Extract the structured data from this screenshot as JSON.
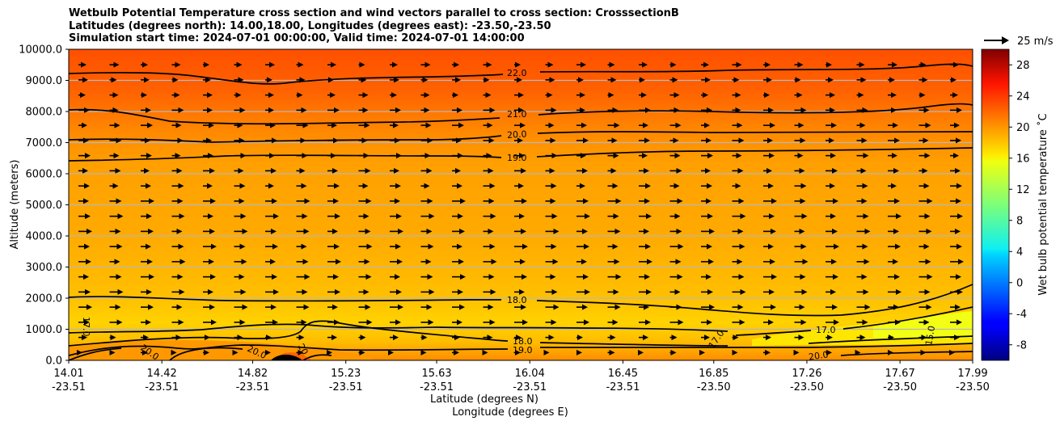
{
  "title_lines": [
    "Wetbulb Potential Temperature cross section and wind vectors parallel to cross section: CrosssectionB",
    "Latitudes (degrees north): 14.00,18.00, Longitudes (degrees east): -23.50,-23.50",
    "Simulation start time: 2024-07-01 00:00:00, Valid time: 2024-07-01 14:00:00"
  ],
  "quiver_key": "25 m/s",
  "chart_data": {
    "type": "filled-contour cross section with wind vectors",
    "xlabel_lat": "Latitude (degrees N)",
    "xlabel_lon": "Longitude (degrees E)",
    "ylabel": "Altitude (meters)",
    "ylim": [
      0,
      10000
    ],
    "xlim": [
      14.01,
      17.99
    ],
    "yticks": [
      0,
      1000,
      2000,
      3000,
      4000,
      5000,
      6000,
      7000,
      8000,
      9000,
      10000
    ],
    "ytick_labels": [
      "0.0",
      "1000.0",
      "2000.0",
      "3000.0",
      "4000.0",
      "5000.0",
      "6000.0",
      "7000.0",
      "8000.0",
      "9000.0",
      "10000.0"
    ],
    "xticks": [
      {
        "lat": "14.01",
        "lon": "-23.51"
      },
      {
        "lat": "14.42",
        "lon": "-23.51"
      },
      {
        "lat": "14.82",
        "lon": "-23.51"
      },
      {
        "lat": "15.23",
        "lon": "-23.51"
      },
      {
        "lat": "15.63",
        "lon": "-23.51"
      },
      {
        "lat": "16.04",
        "lon": "-23.51"
      },
      {
        "lat": "16.45",
        "lon": "-23.51"
      },
      {
        "lat": "16.85",
        "lon": "-23.50"
      },
      {
        "lat": "17.26",
        "lon": "-23.50"
      },
      {
        "lat": "17.67",
        "lon": "-23.50"
      },
      {
        "lat": "17.99",
        "lon": "-23.50"
      }
    ],
    "colorbar": {
      "label": "Wet bulb potential temperature ˚C",
      "range": [
        -10,
        30
      ],
      "ticks": [
        "-8",
        "-4",
        "0",
        "4",
        "8",
        "12",
        "16",
        "20",
        "24",
        "28"
      ]
    },
    "contours": [
      {
        "level": 22.0,
        "label": "22.0",
        "altitude_m": 9200
      },
      {
        "level": 21.0,
        "label": "21.0",
        "altitude_m": 7900
      },
      {
        "level": 20.0,
        "label": "20.0",
        "altitude_m": 7100
      },
      {
        "level": 19.0,
        "label": "19.0",
        "altitude_m": 6500
      },
      {
        "level": 18.0,
        "label": "18.0",
        "altitude_m": 1950
      },
      {
        "level": 17.0,
        "label": "17.0",
        "altitude_m": 1000
      },
      {
        "level": 18.0,
        "label": "18.0",
        "altitude_m": 600
      },
      {
        "level": 19.0,
        "label": "19.0",
        "altitude_m": 350
      },
      {
        "level": 20.0,
        "label": "20.0",
        "altitude_m": 150
      }
    ],
    "side_labels": [
      "17.0",
      "20.0",
      "20.0",
      "20",
      "17.0",
      "17.0",
      "15.0",
      "20.0"
    ],
    "wind": "westerly (flow toward increasing latitude) at all levels"
  }
}
